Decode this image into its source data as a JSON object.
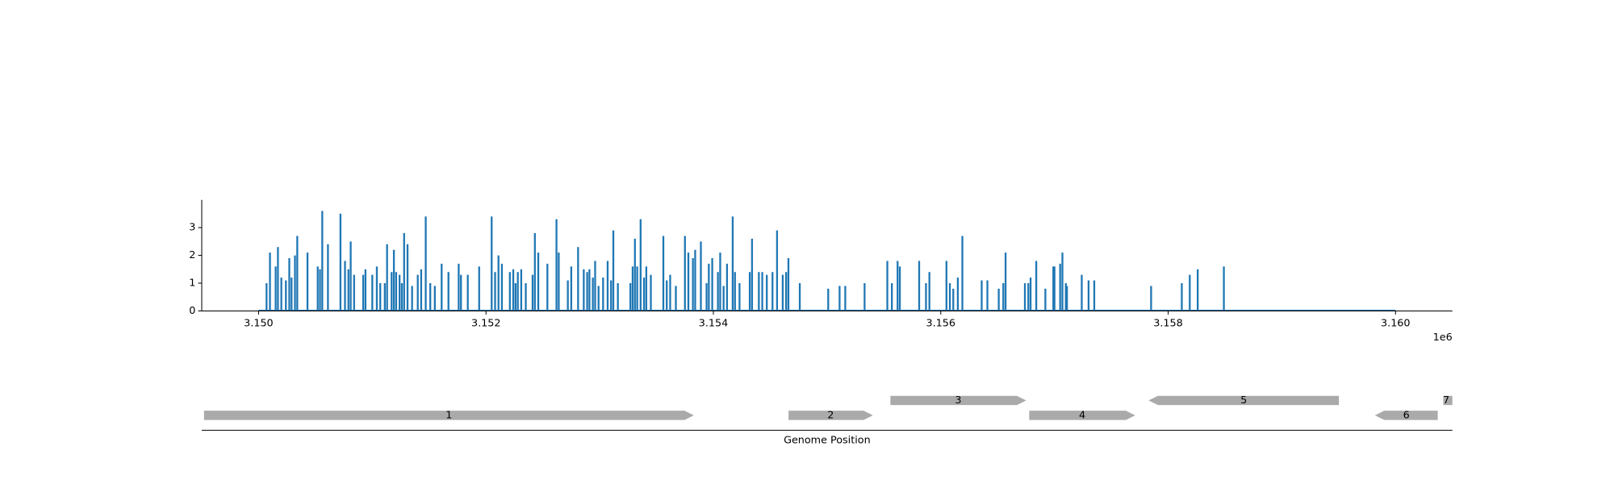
{
  "chart_data": [
    {
      "type": "bar",
      "x": [
        3150000,
        3150070,
        3150100,
        3150150,
        3150170,
        3150200,
        3150240,
        3150270,
        3150290,
        3150320,
        3150340,
        3150430,
        3150520,
        3150540,
        3150560,
        3150610,
        3150720,
        3150760,
        3150790,
        3150810,
        3150840,
        3150920,
        3150940,
        3151000,
        3151040,
        3151070,
        3151110,
        3151130,
        3151170,
        3151190,
        3151210,
        3151240,
        3151260,
        3151280,
        3151310,
        3151350,
        3151400,
        3151430,
        3151470,
        3151510,
        3151550,
        3151610,
        3151670,
        3151760,
        3151780,
        3151840,
        3151940,
        3152050,
        3152080,
        3152110,
        3152140,
        3152210,
        3152240,
        3152260,
        3152280,
        3152310,
        3152350,
        3152410,
        3152430,
        3152460,
        3152540,
        3152620,
        3152640,
        3152720,
        3152750,
        3152810,
        3152860,
        3152890,
        3152910,
        3152940,
        3152960,
        3152990,
        3153030,
        3153070,
        3153100,
        3153120,
        3153160,
        3153270,
        3153290,
        3153310,
        3153330,
        3153360,
        3153390,
        3153410,
        3153450,
        3153560,
        3153590,
        3153620,
        3153670,
        3153750,
        3153780,
        3153820,
        3153840,
        3153890,
        3153940,
        3153960,
        3153990,
        3154040,
        3154060,
        3154090,
        3154120,
        3154170,
        3154190,
        3154230,
        3154320,
        3154340,
        3154400,
        3154430,
        3154470,
        3154520,
        3154560,
        3154610,
        3154640,
        3154660,
        3154760,
        3155010,
        3155110,
        3155160,
        3155330,
        3155530,
        3155570,
        3155620,
        3155640,
        3155810,
        3155870,
        3155900,
        3156050,
        3156080,
        3156110,
        3156150,
        3156190,
        3156360,
        3156410,
        3156510,
        3156550,
        3156570,
        3156740,
        3156770,
        3156790,
        3156840,
        3156920,
        3156990,
        3157000,
        3157050,
        3157070,
        3157100,
        3157110,
        3157240,
        3157300,
        3157350,
        3157850,
        3158120,
        3158190,
        3158260,
        3158490,
        3160000
      ],
      "values": [
        0,
        1.0,
        2.1,
        1.6,
        2.3,
        1.2,
        1.1,
        1.9,
        1.2,
        2.0,
        2.7,
        2.1,
        1.6,
        1.5,
        3.6,
        2.4,
        3.5,
        1.8,
        1.5,
        2.5,
        1.3,
        1.3,
        1.5,
        1.3,
        1.6,
        1.0,
        1.0,
        2.4,
        1.4,
        2.2,
        1.4,
        1.3,
        1.0,
        2.8,
        2.4,
        0.9,
        1.3,
        1.5,
        3.4,
        1.0,
        0.9,
        1.7,
        1.4,
        1.7,
        1.3,
        1.3,
        1.6,
        3.4,
        1.4,
        2.0,
        1.7,
        1.4,
        1.5,
        1.0,
        1.4,
        1.5,
        1.0,
        1.3,
        2.8,
        2.1,
        1.7,
        3.3,
        2.1,
        1.1,
        1.6,
        2.3,
        1.5,
        1.4,
        1.5,
        1.2,
        1.8,
        0.9,
        1.2,
        1.8,
        1.1,
        2.9,
        1.0,
        1.0,
        1.6,
        2.6,
        1.6,
        3.3,
        1.2,
        1.6,
        1.3,
        2.7,
        1.1,
        1.3,
        0.9,
        2.7,
        2.1,
        1.9,
        2.2,
        2.5,
        1.0,
        1.7,
        1.9,
        1.4,
        2.1,
        0.9,
        1.7,
        3.4,
        1.4,
        1.0,
        1.4,
        2.6,
        1.4,
        1.4,
        1.3,
        1.4,
        2.9,
        1.3,
        1.4,
        1.9,
        1.0,
        0.8,
        0.9,
        0.9,
        1.0,
        1.8,
        1.0,
        1.8,
        1.6,
        1.8,
        1.0,
        1.4,
        1.8,
        1.0,
        0.8,
        1.2,
        2.7,
        1.1,
        1.1,
        0.8,
        1.0,
        2.1,
        1.0,
        1.0,
        1.2,
        1.8,
        0.8,
        1.6,
        1.6,
        1.7,
        2.1,
        1.0,
        0.9,
        1.3,
        1.1,
        1.1,
        0.9,
        1.0,
        1.3,
        1.5,
        1.6,
        0
      ],
      "color": "#1f77b4",
      "xlim": [
        3149500,
        3160500
      ],
      "xticks": [
        {
          "value": 3150000,
          "label": "3.150"
        },
        {
          "value": 3152000,
          "label": "3.152"
        },
        {
          "value": 3154000,
          "label": "3.154"
        },
        {
          "value": 3156000,
          "label": "3.156"
        },
        {
          "value": 3158000,
          "label": "3.158"
        },
        {
          "value": 3160000,
          "label": "3.160"
        }
      ],
      "offset_text": "1e6",
      "ylim": [
        0,
        4
      ],
      "yticks": [
        0,
        1,
        2,
        3
      ]
    },
    {
      "type": "genes",
      "xlim": [
        3149500,
        3160500
      ],
      "xlabel": "Genome Position",
      "color": "#aaaaaa",
      "genes": [
        {
          "label": "1",
          "start": 3149520,
          "end": 3153828,
          "strand": 1
        },
        {
          "label": "2",
          "start": 3154661,
          "end": 3155403,
          "strand": 1
        },
        {
          "label": "3",
          "start": 3155557,
          "end": 3156751,
          "strand": 1
        },
        {
          "label": "4",
          "start": 3156778,
          "end": 3157710,
          "strand": 1
        },
        {
          "label": "5",
          "start": 3157828,
          "end": 3159502,
          "strand": -1
        },
        {
          "label": "6",
          "start": 3159819,
          "end": 3160371,
          "strand": -1
        },
        {
          "label": "7",
          "start": 3160420,
          "end": 3160600,
          "strand": 1
        }
      ]
    }
  ]
}
